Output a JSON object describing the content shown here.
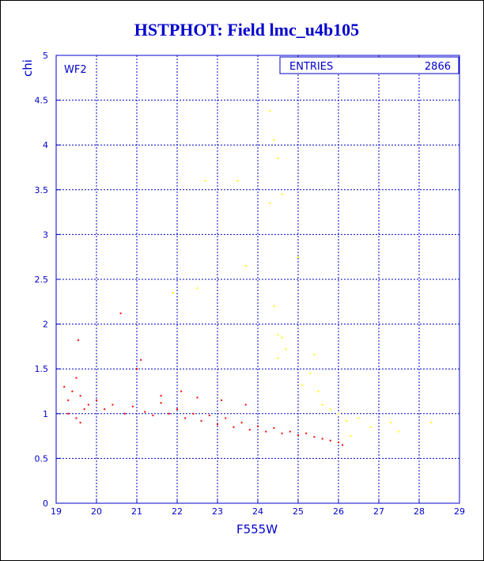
{
  "chart_data": {
    "type": "scatter",
    "title": "HSTPHOT: Field lmc_u4b105",
    "xlabel": "F555W",
    "ylabel": "chi",
    "panel_label": "WF2",
    "stats": {
      "label": "ENTRIES",
      "value": "2866"
    },
    "xlim": [
      19,
      29
    ],
    "ylim": [
      0,
      5
    ],
    "xticks": [
      "19",
      "20",
      "21",
      "22",
      "23",
      "24",
      "25",
      "26",
      "27",
      "28",
      "29"
    ],
    "yticks": [
      "0",
      "0.5",
      "1",
      "1.5",
      "2",
      "2.5",
      "3",
      "3.5",
      "4",
      "4.5",
      "5"
    ],
    "grid": true,
    "colors": {
      "title": "#0000cc",
      "axes": "#0000cc",
      "grid": "#0000cc",
      "main": "#ff0000",
      "secondary": "#ffff00"
    },
    "series": [
      {
        "color": "#ff0000",
        "points": [
          [
            19.2,
            1.3
          ],
          [
            19.3,
            1.15
          ],
          [
            19.4,
            1.25
          ],
          [
            19.5,
            0.95
          ],
          [
            19.6,
            1.2
          ],
          [
            19.7,
            1.05
          ],
          [
            19.5,
            1.4
          ],
          [
            19.3,
            1.0
          ],
          [
            19.8,
            1.1
          ],
          [
            19.6,
            0.9
          ],
          [
            20.0,
            1.15
          ],
          [
            20.2,
            1.05
          ],
          [
            20.4,
            1.1
          ],
          [
            20.7,
            1.0
          ],
          [
            20.9,
            1.08
          ],
          [
            21.2,
            1.02
          ],
          [
            21.4,
            0.98
          ],
          [
            21.6,
            1.12
          ],
          [
            21.8,
            1.0
          ],
          [
            21.0,
            1.5
          ],
          [
            20.6,
            2.12
          ],
          [
            19.55,
            1.82
          ],
          [
            21.1,
            1.6
          ],
          [
            21.6,
            1.2
          ],
          [
            22.0,
            1.05
          ],
          [
            22.2,
            0.95
          ],
          [
            22.4,
            1.0
          ],
          [
            22.6,
            0.92
          ],
          [
            22.8,
            0.98
          ],
          [
            23.0,
            0.88
          ],
          [
            23.2,
            0.95
          ],
          [
            23.4,
            0.85
          ],
          [
            23.6,
            0.9
          ],
          [
            23.8,
            0.82
          ],
          [
            24.0,
            0.86
          ],
          [
            24.2,
            0.8
          ],
          [
            24.4,
            0.84
          ],
          [
            24.6,
            0.78
          ],
          [
            24.8,
            0.8
          ],
          [
            25.0,
            0.76
          ],
          [
            25.2,
            0.78
          ],
          [
            25.4,
            0.74
          ],
          [
            25.6,
            0.72
          ],
          [
            25.8,
            0.7
          ],
          [
            26.0,
            0.68
          ],
          [
            26.1,
            0.65
          ],
          [
            22.1,
            1.25
          ],
          [
            22.5,
            1.18
          ],
          [
            23.1,
            1.15
          ],
          [
            23.7,
            1.1
          ]
        ]
      },
      {
        "color": "#ffff00",
        "points": [
          [
            24.3,
            4.38
          ],
          [
            24.4,
            4.05
          ],
          [
            24.5,
            3.85
          ],
          [
            23.5,
            3.6
          ],
          [
            22.7,
            3.6
          ],
          [
            24.6,
            3.45
          ],
          [
            24.3,
            3.35
          ],
          [
            25.0,
            2.75
          ],
          [
            23.7,
            2.65
          ],
          [
            22.5,
            2.4
          ],
          [
            21.9,
            2.35
          ],
          [
            24.4,
            2.2
          ],
          [
            24.5,
            1.88
          ],
          [
            24.6,
            1.85
          ],
          [
            24.7,
            1.72
          ],
          [
            24.5,
            1.62
          ],
          [
            25.4,
            1.66
          ],
          [
            25.3,
            1.45
          ],
          [
            25.1,
            1.32
          ],
          [
            25.5,
            1.25
          ],
          [
            25.6,
            1.1
          ],
          [
            25.8,
            1.05
          ],
          [
            26.0,
            1.0
          ],
          [
            26.2,
            0.92
          ],
          [
            26.5,
            0.95
          ],
          [
            26.8,
            0.85
          ],
          [
            27.3,
            0.9
          ],
          [
            27.5,
            0.8
          ],
          [
            28.3,
            0.9
          ],
          [
            26.3,
            0.75
          ]
        ]
      }
    ]
  }
}
